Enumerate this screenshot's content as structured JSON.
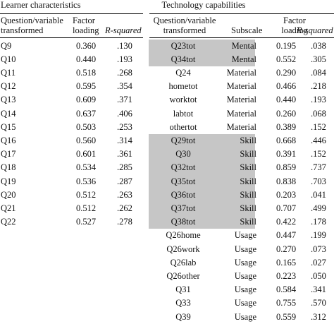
{
  "left": {
    "title": "Learner characteristics",
    "headers": {
      "question": "Question/variable transformed",
      "loading": "Factor loading",
      "rsq": "R-squared"
    },
    "rows": [
      {
        "q": "Q9",
        "loading": "0.360",
        "rsq": ".130"
      },
      {
        "q": "Q10",
        "loading": "0.440",
        "rsq": ".193"
      },
      {
        "q": "Q11",
        "loading": "0.518",
        "rsq": ".268"
      },
      {
        "q": "Q12",
        "loading": "0.595",
        "rsq": ".354"
      },
      {
        "q": "Q13",
        "loading": "0.609",
        "rsq": ".371"
      },
      {
        "q": "Q14",
        "loading": "0.637",
        "rsq": ".406"
      },
      {
        "q": "Q15",
        "loading": "0.503",
        "rsq": ".253"
      },
      {
        "q": "Q16",
        "loading": "0.560",
        "rsq": ".314"
      },
      {
        "q": "Q17",
        "loading": "0.601",
        "rsq": ".361"
      },
      {
        "q": "Q18",
        "loading": "0.534",
        "rsq": ".285"
      },
      {
        "q": "Q19",
        "loading": "0.536",
        "rsq": ".287"
      },
      {
        "q": "Q20",
        "loading": "0.512",
        "rsq": ".263"
      },
      {
        "q": "Q21",
        "loading": "0.512",
        "rsq": ".262"
      },
      {
        "q": "Q22",
        "loading": "0.527",
        "rsq": ".278"
      }
    ]
  },
  "right": {
    "title": "Technology capabilities",
    "headers": {
      "question": "Question/variable transformed",
      "subscale": "Subscale",
      "loading": "Factor loading",
      "rsq": "R-squared"
    },
    "rows": [
      {
        "q": "Q23tot",
        "subscale": "Mental",
        "loading": "0.195",
        "rsq": ".038",
        "shaded": true
      },
      {
        "q": "Q34tot",
        "subscale": "Mental",
        "loading": "0.552",
        "rsq": ".305",
        "shaded": true
      },
      {
        "q": "Q24",
        "subscale": "Material",
        "loading": "0.290",
        "rsq": ".084",
        "shaded": false
      },
      {
        "q": "hometot",
        "subscale": "Material",
        "loading": "0.466",
        "rsq": ".218",
        "shaded": false
      },
      {
        "q": "worktot",
        "subscale": "Material",
        "loading": "0.440",
        "rsq": ".193",
        "shaded": false
      },
      {
        "q": "labtot",
        "subscale": "Material",
        "loading": "0.260",
        "rsq": ".068",
        "shaded": false
      },
      {
        "q": "othertot",
        "subscale": "Material",
        "loading": "0.389",
        "rsq": ".152",
        "shaded": false
      },
      {
        "q": "Q29tot",
        "subscale": "Skill",
        "loading": "0.668",
        "rsq": ".446",
        "shaded": true
      },
      {
        "q": "Q30",
        "subscale": "Skill",
        "loading": "0.391",
        "rsq": ".152",
        "shaded": true
      },
      {
        "q": "Q32tot",
        "subscale": "Skill",
        "loading": "0.859",
        "rsq": ".737",
        "shaded": true
      },
      {
        "q": "Q35tot",
        "subscale": "Skill",
        "loading": "0.838",
        "rsq": ".703",
        "shaded": true
      },
      {
        "q": "Q36tot",
        "subscale": "Skill",
        "loading": "0.203",
        "rsq": ".041",
        "shaded": true
      },
      {
        "q": "Q37tot",
        "subscale": "Skill",
        "loading": "0.707",
        "rsq": ".499",
        "shaded": true
      },
      {
        "q": "Q38tot",
        "subscale": "Skill",
        "loading": "0.422",
        "rsq": ".178",
        "shaded": true
      },
      {
        "q": "Q26home",
        "subscale": "Usage",
        "loading": "0.447",
        "rsq": ".199",
        "shaded": false
      },
      {
        "q": "Q26work",
        "subscale": "Usage",
        "loading": "0.270",
        "rsq": ".073",
        "shaded": false
      },
      {
        "q": "Q26lab",
        "subscale": "Usage",
        "loading": "0.165",
        "rsq": ".027",
        "shaded": false
      },
      {
        "q": "Q26other",
        "subscale": "Usage",
        "loading": "0.223",
        "rsq": ".050",
        "shaded": false
      },
      {
        "q": "Q31",
        "subscale": "Usage",
        "loading": "0.584",
        "rsq": ".341",
        "shaded": false
      },
      {
        "q": "Q33",
        "subscale": "Usage",
        "loading": "0.755",
        "rsq": ".570",
        "shaded": false
      },
      {
        "q": "Q39",
        "subscale": "Usage",
        "loading": "0.559",
        "rsq": ".312",
        "shaded": false
      }
    ]
  },
  "colors": {
    "shade": "#c6c6c6",
    "text": "#111111",
    "rule": "#000000"
  }
}
